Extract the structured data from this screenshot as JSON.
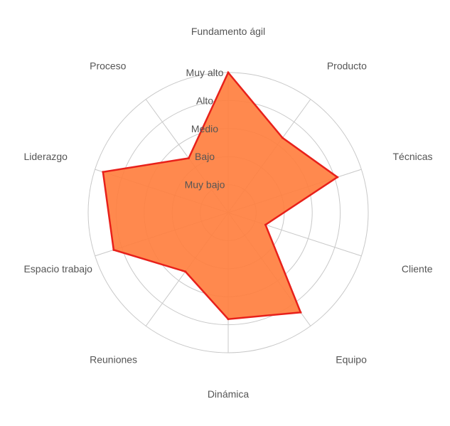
{
  "chart_data": {
    "type": "radar",
    "axes": [
      "Fundamento ágil",
      "Producto",
      "Técnicas",
      "Cliente",
      "Equipo",
      "Dinámica",
      "Reuniones",
      "Espacio trabajo",
      "Liderazgo",
      "Proceso"
    ],
    "levels": [
      "Muy bajo",
      "Bajo",
      "Medio",
      "Alto",
      "Muy alto"
    ],
    "range": [
      0,
      5
    ],
    "grid": true,
    "series": [
      {
        "values": [
          5.0,
          3.3,
          4.1,
          1.4,
          4.4,
          3.8,
          2.6,
          4.3,
          4.7,
          2.4
        ],
        "fill_color": "#ff7f3f",
        "line_color": "#e8201a"
      }
    ]
  }
}
